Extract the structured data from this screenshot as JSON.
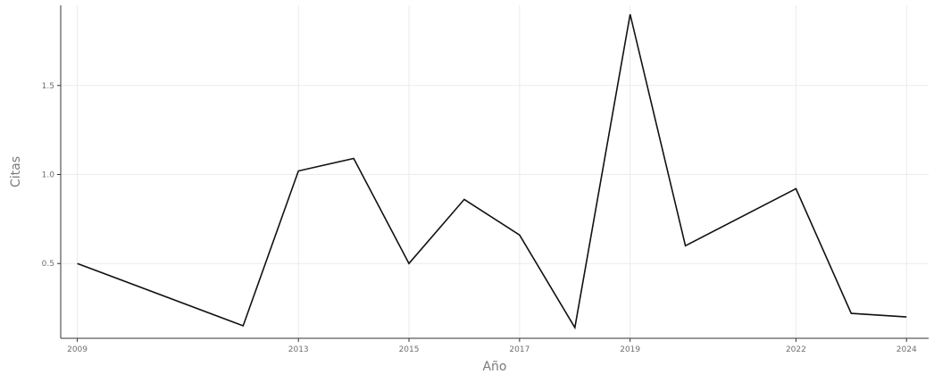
{
  "chart_data": {
    "type": "line",
    "title": "",
    "xlabel": "Año",
    "ylabel": "Citas",
    "xlim": [
      2008.7,
      2024.4
    ],
    "ylim": [
      0.08,
      1.95
    ],
    "x_ticks": [
      2009,
      2013,
      2015,
      2017,
      2019,
      2022,
      2024
    ],
    "x_tick_labels": [
      "2009",
      "2013",
      "2015",
      "2017",
      "2019",
      "2022",
      "2024"
    ],
    "y_ticks": [
      0.5,
      1.0,
      1.5
    ],
    "y_tick_labels": [
      "0.5",
      "1.0",
      "1.5"
    ],
    "grid": true,
    "series": [
      {
        "x": [
          2009,
          2012,
          2013,
          2014,
          2015,
          2016,
          2017,
          2018,
          2019,
          2020,
          2022,
          2023,
          2024
        ],
        "values": [
          0.5,
          0.15,
          1.02,
          1.09,
          0.5,
          0.86,
          0.66,
          0.14,
          1.9,
          0.6,
          0.92,
          0.22,
          0.2
        ],
        "color": "#111111"
      }
    ]
  }
}
